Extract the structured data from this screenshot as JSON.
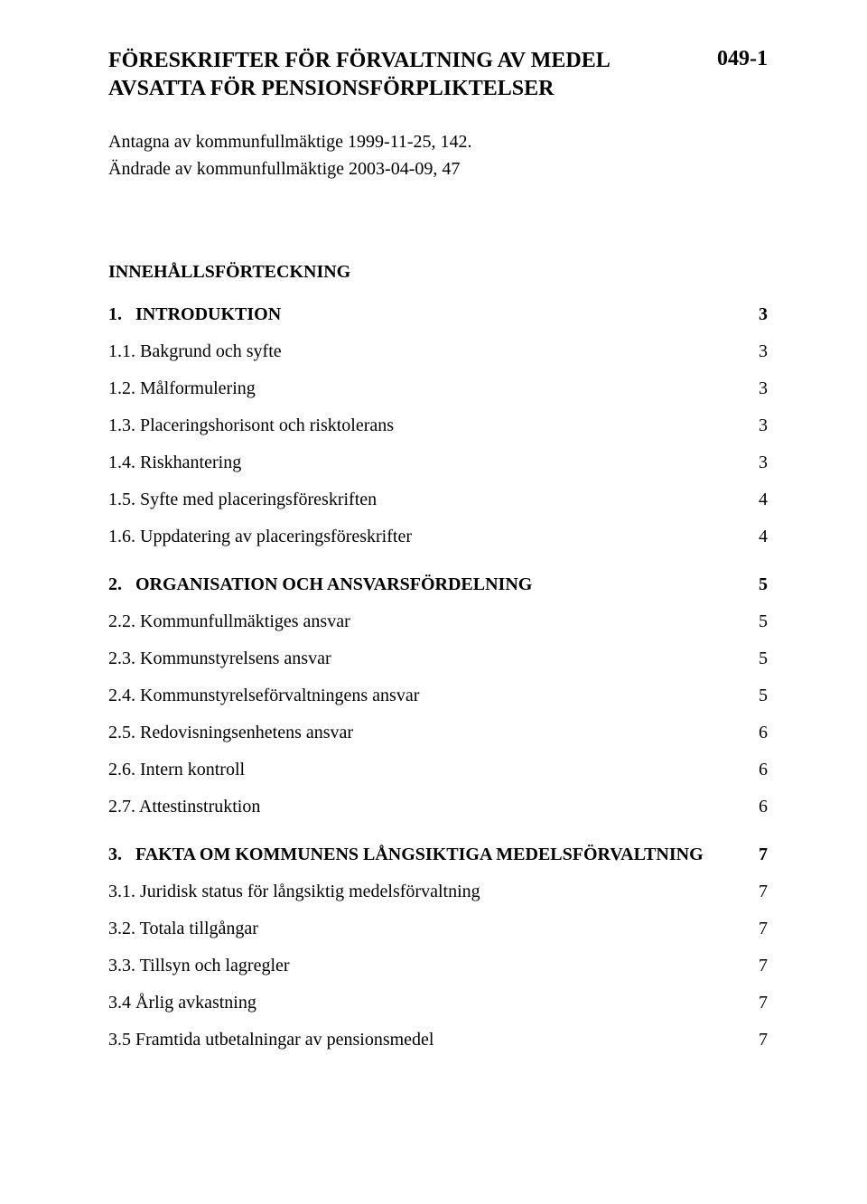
{
  "header": {
    "title": "FÖRESKRIFTER FÖR FÖRVALTNING AV MEDEL AVSATTA FÖR PENSIONSFÖRPLIKTELSER",
    "code": "049-1"
  },
  "adopted": {
    "line1": "Antagna av kommunfullmäktige 1999-11-25, 142.",
    "line2": "Ändrade av kommunfullmäktige 2003-04-09, 47"
  },
  "toc_title": "INNEHÅLLSFÖRTECKNING",
  "toc": [
    {
      "num": "1.",
      "title": "INTRODUKTION",
      "page": "3",
      "items": [
        {
          "num": "1.1.",
          "title": "Bakgrund och syfte",
          "page": "3"
        },
        {
          "num": "1.2.",
          "title": "Målformulering",
          "page": "3"
        },
        {
          "num": "1.3.",
          "title": "Placeringshorisont och risktolerans",
          "page": "3"
        },
        {
          "num": "1.4.",
          "title": "Riskhantering",
          "page": "3"
        },
        {
          "num": "1.5.",
          "title": "Syfte med placeringsföreskriften",
          "page": "4"
        },
        {
          "num": "1.6.",
          "title": "Uppdatering av placeringsföreskrifter",
          "page": "4"
        }
      ]
    },
    {
      "num": "2.",
      "title": "ORGANISATION OCH ANSVARSFÖRDELNING",
      "page": "5",
      "items": [
        {
          "num": "2.2.",
          "title": "Kommunfullmäktiges ansvar",
          "page": "5"
        },
        {
          "num": "2.3.",
          "title": "Kommunstyrelsens ansvar",
          "page": "5"
        },
        {
          "num": "2.4.",
          "title": "Kommunstyrelseförvaltningens ansvar",
          "page": "5"
        },
        {
          "num": "2.5.",
          "title": "Redovisningsenhetens ansvar",
          "page": "6"
        },
        {
          "num": "2.6.",
          "title": "Intern kontroll",
          "page": "6"
        },
        {
          "num": "2.7.",
          "title": "Attestinstruktion",
          "page": "6"
        }
      ]
    },
    {
      "num": "3.",
      "title": "FAKTA OM KOMMUNENS LÅNGSIKTIGA MEDELSFÖRVALTNING",
      "page": "7",
      "items": [
        {
          "num": "3.1.",
          "title": "Juridisk status för långsiktig medelsförvaltning",
          "page": "7"
        },
        {
          "num": "3.2.",
          "title": "Totala tillgångar",
          "page": "7"
        },
        {
          "num": "3.3.",
          "title": "Tillsyn och lagregler",
          "page": "7"
        },
        {
          "num": "3.4",
          "title": "Årlig avkastning",
          "page": "7"
        },
        {
          "num": "3.5",
          "title": "Framtida utbetalningar av pensionsmedel",
          "page": "7"
        }
      ]
    }
  ]
}
